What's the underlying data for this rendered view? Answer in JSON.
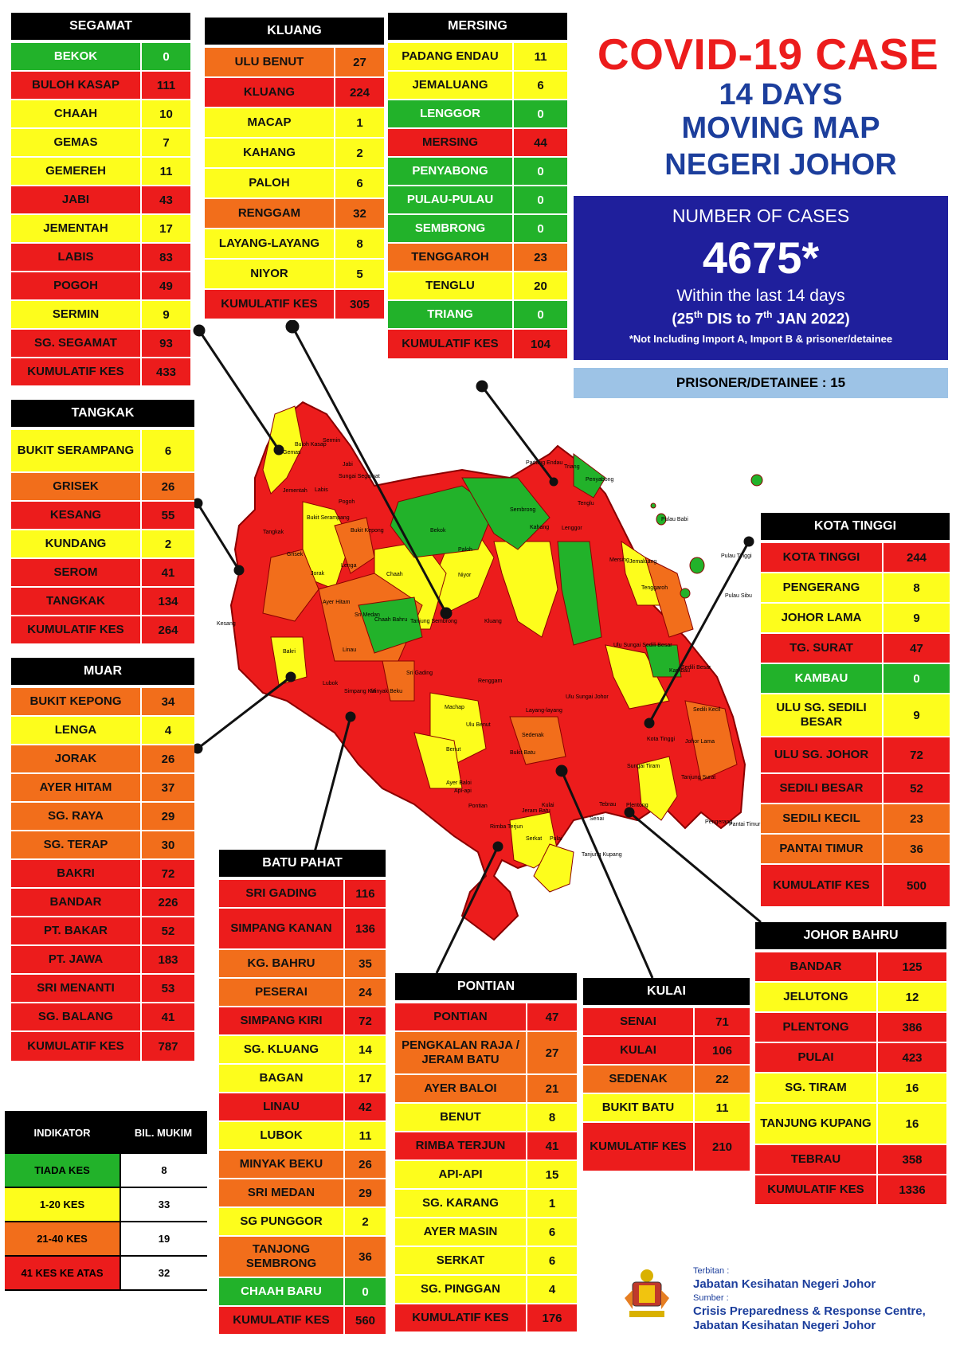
{
  "header": {
    "title": "COVID-19 CASE",
    "subtitle_lines": [
      "14 DAYS",
      "MOVING MAP",
      "NEGERI JOHOR"
    ]
  },
  "summary": {
    "label": "NUMBER OF CASES",
    "total": "4675*",
    "period_text": "Within the last 14 days",
    "date_start_day": "25",
    "date_start_sup": "th",
    "date_start_rest": " DIS to 7",
    "date_end_sup": "th",
    "date_end_rest": " JAN 2022)",
    "date_open": "(",
    "note": "*Not Including Import A, Import B & prisoner/detainee",
    "prisoner": "PRISONER/DETAINEE : 15"
  },
  "colors": {
    "green": "#22b22a",
    "yellow": "#fdfd1c",
    "orange": "#f26e1b",
    "red": "#ec1c1c",
    "title_red": "#ec1c1c",
    "title_blue": "#1c3e9c",
    "box_blue": "#1f1f9c",
    "prisoner_blue": "#9dc3e6"
  },
  "districts": [
    {
      "id": "segamat",
      "name": "SEGAMAT",
      "total_label": "KUMULATIF KES",
      "total": "433",
      "rows": [
        [
          "BEKOK",
          "0",
          "green"
        ],
        [
          "BULOH KASAP",
          "111",
          "red"
        ],
        [
          "CHAAH",
          "10",
          "yellow"
        ],
        [
          "GEMAS",
          "7",
          "yellow"
        ],
        [
          "GEMEREH",
          "11",
          "yellow"
        ],
        [
          "JABI",
          "43",
          "red"
        ],
        [
          "JEMENTAH",
          "17",
          "yellow"
        ],
        [
          "LABIS",
          "83",
          "red"
        ],
        [
          "POGOH",
          "49",
          "red"
        ],
        [
          "SERMIN",
          "9",
          "yellow"
        ],
        [
          "SG. SEGAMAT",
          "93",
          "red"
        ]
      ]
    },
    {
      "id": "kluang",
      "name": "KLUANG",
      "total_label": "KUMULATIF KES",
      "total": "305",
      "rows": [
        [
          "ULU BENUT",
          "27",
          "orange"
        ],
        [
          "KLUANG",
          "224",
          "red"
        ],
        [
          "MACAP",
          "1",
          "yellow"
        ],
        [
          "KAHANG",
          "2",
          "yellow"
        ],
        [
          "PALOH",
          "6",
          "yellow"
        ],
        [
          "RENGGAM",
          "32",
          "orange"
        ],
        [
          "LAYANG-LAYANG",
          "8",
          "yellow"
        ],
        [
          "NIYOR",
          "5",
          "yellow"
        ]
      ]
    },
    {
      "id": "mersing",
      "name": "MERSING",
      "total_label": "KUMULATIF KES",
      "total": "104",
      "rows": [
        [
          "PADANG ENDAU",
          "11",
          "yellow"
        ],
        [
          "JEMALUANG",
          "6",
          "yellow"
        ],
        [
          "LENGGOR",
          "0",
          "green"
        ],
        [
          "MERSING",
          "44",
          "red"
        ],
        [
          "PENYABONG",
          "0",
          "green"
        ],
        [
          "PULAU-PULAU",
          "0",
          "green"
        ],
        [
          "SEMBRONG",
          "0",
          "green"
        ],
        [
          "TENGGAROH",
          "23",
          "orange"
        ],
        [
          "TENGLU",
          "20",
          "yellow"
        ],
        [
          "TRIANG",
          "0",
          "green"
        ]
      ]
    },
    {
      "id": "tangkak",
      "name": "TANGKAK",
      "total_label": "KUMULATIF KES",
      "total": "264",
      "rows": [
        [
          "BUKIT SERAMPANG",
          "6",
          "yellow"
        ],
        [
          "GRISEK",
          "26",
          "orange"
        ],
        [
          "KESANG",
          "55",
          "red"
        ],
        [
          "KUNDANG",
          "2",
          "yellow"
        ],
        [
          "SEROM",
          "41",
          "red"
        ],
        [
          "TANGKAK",
          "134",
          "red"
        ]
      ]
    },
    {
      "id": "muar",
      "name": "MUAR",
      "total_label": "KUMULATIF KES",
      "total": "787",
      "rows": [
        [
          "BUKIT KEPONG",
          "34",
          "orange"
        ],
        [
          "LENGA",
          "4",
          "yellow"
        ],
        [
          "JORAK",
          "26",
          "orange"
        ],
        [
          "AYER HITAM",
          "37",
          "orange"
        ],
        [
          "SG. RAYA",
          "29",
          "orange"
        ],
        [
          "SG. TERAP",
          "30",
          "orange"
        ],
        [
          "BAKRI",
          "72",
          "red"
        ],
        [
          "BANDAR",
          "226",
          "red"
        ],
        [
          "PT. BAKAR",
          "52",
          "red"
        ],
        [
          "PT. JAWA",
          "183",
          "red"
        ],
        [
          "SRI MENANTI",
          "53",
          "red"
        ],
        [
          "SG. BALANG",
          "41",
          "red"
        ]
      ]
    },
    {
      "id": "batupahat",
      "name": "BATU PAHAT",
      "total_label": "KUMULATIF KES",
      "total": "560",
      "rows": [
        [
          "SRI GADING",
          "116",
          "red"
        ],
        [
          "SIMPANG KANAN",
          "136",
          "red"
        ],
        [
          "KG. BAHRU",
          "35",
          "orange"
        ],
        [
          "PESERAI",
          "24",
          "orange"
        ],
        [
          "SIMPANG KIRI",
          "72",
          "red"
        ],
        [
          "SG. KLUANG",
          "14",
          "yellow"
        ],
        [
          "BAGAN",
          "17",
          "yellow"
        ],
        [
          "LINAU",
          "42",
          "red"
        ],
        [
          "LUBOK",
          "11",
          "yellow"
        ],
        [
          "MINYAK BEKU",
          "26",
          "orange"
        ],
        [
          "SRI MEDAN",
          "29",
          "orange"
        ],
        [
          "SG PUNGGOR",
          "2",
          "yellow"
        ],
        [
          "TANJONG SEMBRONG",
          "36",
          "orange"
        ],
        [
          "CHAAH BARU",
          "0",
          "green"
        ]
      ]
    },
    {
      "id": "pontian",
      "name": "PONTIAN",
      "total_label": "KUMULATIF KES",
      "total": "176",
      "rows": [
        [
          "PONTIAN",
          "47",
          "red"
        ],
        [
          "PENGKALAN RAJA / JERAM BATU",
          "27",
          "orange"
        ],
        [
          "AYER BALOI",
          "21",
          "orange"
        ],
        [
          "BENUT",
          "8",
          "yellow"
        ],
        [
          "RIMBA TERJUN",
          "41",
          "red"
        ],
        [
          "API-API",
          "15",
          "yellow"
        ],
        [
          "SG. KARANG",
          "1",
          "yellow"
        ],
        [
          "AYER MASIN",
          "6",
          "yellow"
        ],
        [
          "SERKAT",
          "6",
          "yellow"
        ],
        [
          "SG. PINGGAN",
          "4",
          "yellow"
        ]
      ]
    },
    {
      "id": "kulai",
      "name": "KULAI",
      "total_label": "KUMULATIF KES",
      "total": "210",
      "rows": [
        [
          "SENAI",
          "71",
          "red"
        ],
        [
          "KULAI",
          "106",
          "red"
        ],
        [
          "SEDENAK",
          "22",
          "orange"
        ],
        [
          "BUKIT BATU",
          "11",
          "yellow"
        ]
      ]
    },
    {
      "id": "kotatinggi",
      "name": "KOTA TINGGI",
      "total_label": "KUMULATIF KES",
      "total": "500",
      "rows": [
        [
          "KOTA TINGGI",
          "244",
          "red"
        ],
        [
          "PENGERANG",
          "8",
          "yellow"
        ],
        [
          "JOHOR LAMA",
          "9",
          "yellow"
        ],
        [
          "TG. SURAT",
          "47",
          "red"
        ],
        [
          "KAMBAU",
          "0",
          "green"
        ],
        [
          "ULU SG. SEDILI BESAR",
          "9",
          "yellow"
        ],
        [
          "ULU  SG. JOHOR",
          "72",
          "red"
        ],
        [
          "SEDILI BESAR",
          "52",
          "red"
        ],
        [
          "SEDILI KECIL",
          "23",
          "orange"
        ],
        [
          "PANTAI TIMUR",
          "36",
          "orange"
        ]
      ]
    },
    {
      "id": "johorbahru",
      "name": "JOHOR BAHRU",
      "total_label": "KUMULATIF KES",
      "total": "1336",
      "rows": [
        [
          "BANDAR",
          "125",
          "red"
        ],
        [
          "JELUTONG",
          "12",
          "yellow"
        ],
        [
          "PLENTONG",
          "386",
          "red"
        ],
        [
          "PULAI",
          "423",
          "red"
        ],
        [
          "SG. TIRAM",
          "16",
          "yellow"
        ],
        [
          "TANJUNG KUPANG",
          "16",
          "yellow"
        ],
        [
          "TEBRAU",
          "358",
          "red"
        ]
      ]
    }
  ],
  "legend": {
    "header_left": "INDIKATOR",
    "header_right": "BIL. MUKIM",
    "rows": [
      [
        "TIADA KES",
        "8",
        "green"
      ],
      [
        "1-20 KES",
        "33",
        "yellow"
      ],
      [
        "21-40 KES",
        "19",
        "orange"
      ],
      [
        "41 KES KE ATAS",
        "32",
        "red"
      ]
    ]
  },
  "credits": {
    "published_label": "Terbitan :",
    "publisher": "Jabatan Kesihatan Negeri Johor",
    "source_label": "Sumber :",
    "source_line1": "Crisis Preparedness & Response Centre,",
    "source_line2": "Jabatan Kesihatan Negeri Johor"
  },
  "map_labels": [
    "Gemas",
    "Buloh Kasap",
    "Sermin",
    "Jabi",
    "Sungai Segamat",
    "Jementah",
    "Pogoh",
    "Labis",
    "Bekok",
    "Sembrong",
    "Padang Endau",
    "Triang",
    "Penyabong",
    "Tenglu",
    "Pulau Babi",
    "Pulau Tinggi",
    "Pulau Sibu",
    "Jemaluang",
    "Mersing",
    "Tenggaroh",
    "Lenggor",
    "Kahang",
    "Paloh",
    "Niyor",
    "Chaah",
    "Bukit Serampang",
    "Bukit Kepong",
    "Tangkak",
    "Grisek",
    "Lenga",
    "Kesang",
    "Jorak",
    "Chaah Bahru",
    "Sri Medan",
    "Ayer Hitam",
    "Bakri",
    "Tanjung Sembrong",
    "Kluang",
    "Renggam",
    "Ulu Sungai Sedili Besar",
    "Kambau",
    "Sedili Besar",
    "Sedili Kecil",
    "Ulu Sungai Johor",
    "Kota Tinggi",
    "Linau",
    "Sri Gading",
    "Machap",
    "Ulu Benut",
    "Layang-layang",
    "Sedenak",
    "Bukit Batu",
    "Benut",
    "Ayer Baloi",
    "Api-api",
    "Pontian",
    "Jeram Batu",
    "Rimba Terjun",
    "Serkat",
    "Senai",
    "Kulai",
    "Pulai",
    "Tebrau",
    "Plentong",
    "Sungai Tiram",
    "Tanjung Kupang",
    "Pengerang",
    "Pantai Timur",
    "Johor Lama",
    "Tanjung Surat",
    "Lubok",
    "Simpang Kiri",
    "Minyak Beku"
  ]
}
